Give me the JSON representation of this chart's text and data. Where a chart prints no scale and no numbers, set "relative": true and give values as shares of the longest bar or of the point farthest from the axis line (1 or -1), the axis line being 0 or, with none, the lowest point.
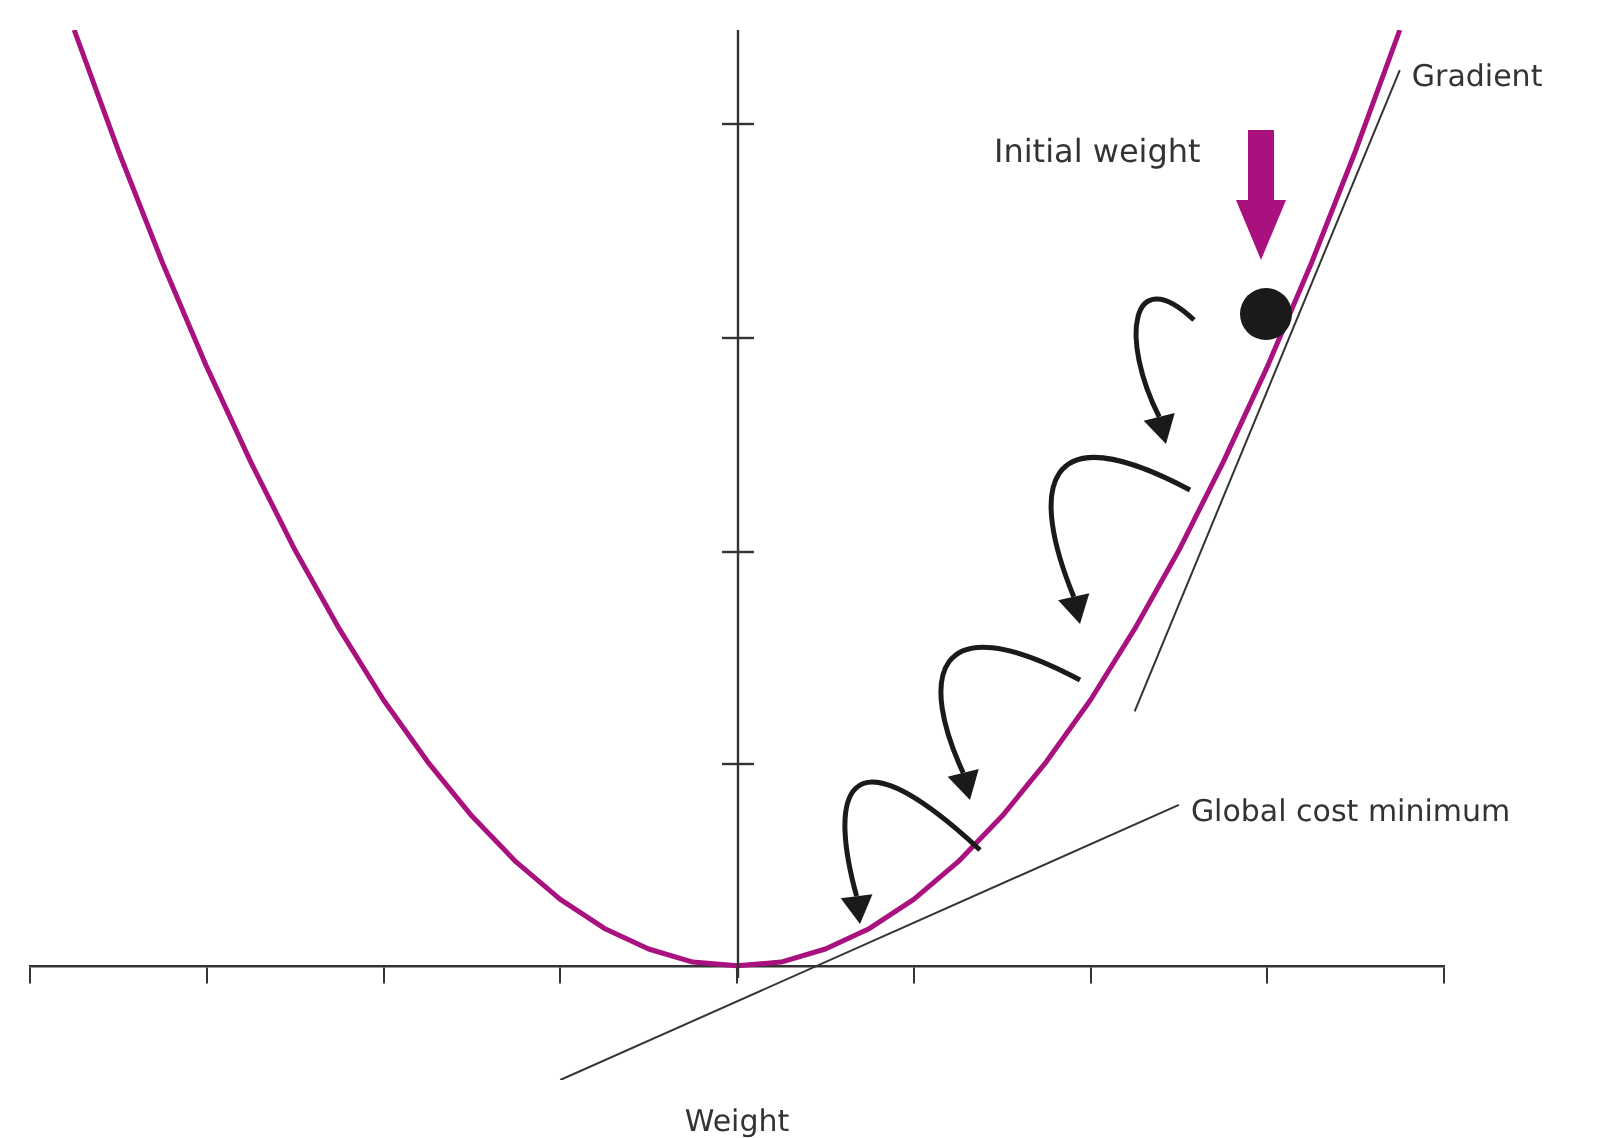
{
  "chart_data": {
    "type": "line",
    "relative": true,
    "xlabel": "Weight",
    "annotations": [
      "Initial weight"
    ],
    "categories": [
      null,
      null,
      null,
      null,
      null,
      null,
      null,
      null,
      null,
      null,
      null,
      null,
      null,
      null,
      null,
      null,
      null,
      null,
      null,
      null,
      null,
      null,
      null,
      null,
      null,
      null,
      null,
      null,
      null,
      null,
      null,
      null,
      null
    ],
    "legend": false,
    "marker": "none",
    "line_style": "solid",
    "series": [
      {
        "color": "#a8117e",
        "values": [
          null,
          1,
          0.871,
          0.751,
          0.64,
          0.538,
          0.444,
          0.36,
          0.284,
          0.218,
          0.16,
          0.111,
          0.071,
          0.04,
          0.018,
          0.004,
          0,
          0.004,
          0.018,
          0.04,
          0.071,
          0.111,
          0.16,
          0.218,
          0.284,
          0.36,
          0.444,
          0.538,
          0.64,
          0.751,
          0.871,
          1,
          null
        ]
      },
      {
        "name": "Gradient",
        "color": "#333333",
        "values": [
          null,
          null,
          null,
          null,
          null,
          null,
          null,
          null,
          null,
          null,
          null,
          null,
          null,
          null,
          null,
          null,
          null,
          null,
          null,
          null,
          null,
          null,
          null,
          null,
          null,
          0.272,
          null,
          null,
          null,
          null,
          null,
          0.957,
          null
        ]
      },
      {
        "name": "Global cost minimum",
        "color": "#333333",
        "values": [
          null,
          null,
          null,
          null,
          null,
          null,
          null,
          null,
          null,
          null,
          null,
          null,
          -0.122,
          null,
          null,
          null,
          null,
          null,
          null,
          null,
          null,
          null,
          null,
          null,
          null,
          null,
          0.172,
          null,
          null,
          null,
          null,
          null,
          null
        ]
      }
    ]
  }
}
